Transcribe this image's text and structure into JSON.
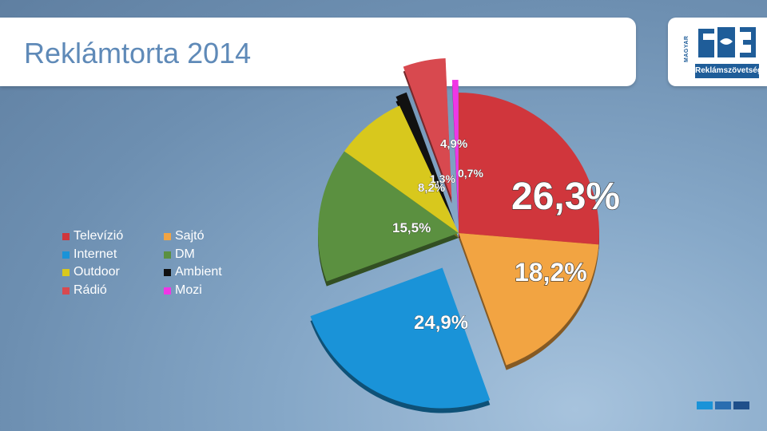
{
  "page_title": "Reklámtorta 2014",
  "logo": {
    "side_text": "MAGYAR",
    "name": "Reklámszövetség",
    "color": "#1f5d99"
  },
  "chart_data": {
    "type": "pie",
    "title": "Reklámtorta 2014",
    "legend_position": "left",
    "slices": [
      {
        "label": "Televízió",
        "value": 26.3,
        "display": "26,3%",
        "color": "#d0363c"
      },
      {
        "label": "Sajtó",
        "value": 18.2,
        "display": "18,2%",
        "color": "#f2a442"
      },
      {
        "label": "Internet",
        "value": 24.9,
        "display": "24,9%",
        "color": "#1a93d8"
      },
      {
        "label": "DM",
        "value": 15.5,
        "display": "15,5%",
        "color": "#5b9040"
      },
      {
        "label": "Outdoor",
        "value": 8.2,
        "display": "8,2%",
        "color": "#d8c81d"
      },
      {
        "label": "Ambient",
        "value": 1.3,
        "display": "1,3%",
        "color": "#111111"
      },
      {
        "label": "Rádió",
        "value": 4.9,
        "display": "4,9%",
        "color": "#d8494f"
      },
      {
        "label": "Mozi",
        "value": 0.7,
        "display": "0,7%",
        "color": "#f036e6"
      }
    ]
  },
  "legend": [
    {
      "label": "Televízió",
      "color": "#d0363c"
    },
    {
      "label": "Sajtó",
      "color": "#f2a442"
    },
    {
      "label": "Internet",
      "color": "#1a93d8"
    },
    {
      "label": "DM",
      "color": "#5b9040"
    },
    {
      "label": "Outdoor",
      "color": "#d8c81d"
    },
    {
      "label": "Ambient",
      "color": "#111111"
    },
    {
      "label": "Rádió",
      "color": "#d8494f"
    },
    {
      "label": "Mozi",
      "color": "#f036e6"
    }
  ],
  "decor_squares": [
    "#1a93d8",
    "#2a6db0",
    "#1f4f8a"
  ]
}
